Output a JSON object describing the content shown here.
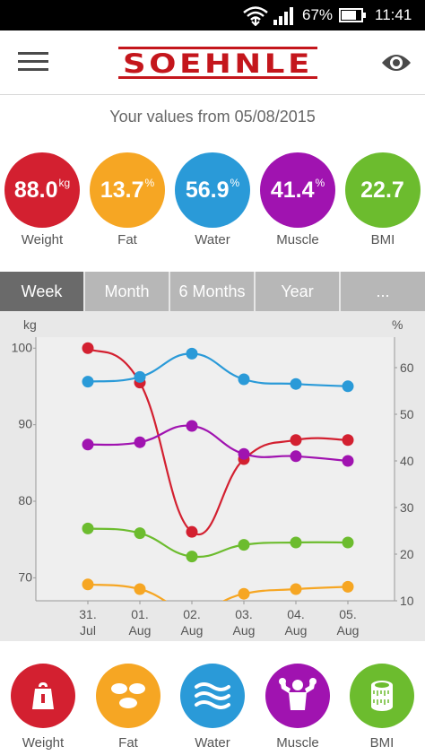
{
  "status": {
    "battery_pct": "67%",
    "time": "11:41"
  },
  "header": {
    "logo_text": "SOEHNLE"
  },
  "subtitle": "Your values from 05/08/2015",
  "metrics": [
    {
      "value": "88.0",
      "unit": "kg",
      "label": "Weight",
      "color": "#d32030"
    },
    {
      "value": "13.7",
      "unit": "%",
      "label": "Fat",
      "color": "#f6a623"
    },
    {
      "value": "56.9",
      "unit": "%",
      "label": "Water",
      "color": "#2a9ad8"
    },
    {
      "value": "41.4",
      "unit": "%",
      "label": "Muscle",
      "color": "#a013b0"
    },
    {
      "value": "22.7",
      "unit": "",
      "label": "BMI",
      "color": "#6cbc2e"
    }
  ],
  "tabs": [
    {
      "label": "Week",
      "active": true
    },
    {
      "label": "Month",
      "active": false
    },
    {
      "label": "6 Months",
      "active": false
    },
    {
      "label": "Year",
      "active": false
    },
    {
      "label": "...",
      "active": false
    }
  ],
  "chart_data": {
    "type": "line",
    "title": "",
    "ylabel_left": "kg",
    "ylabel_right": "%",
    "left_ticks": [
      "100",
      "90",
      "80",
      "70"
    ],
    "right_ticks": [
      "60",
      "50",
      "40",
      "30",
      "20",
      "10"
    ],
    "ylim_left": [
      67,
      100.5
    ],
    "ylim_right": [
      10,
      65
    ],
    "categories": [
      {
        "line1": "31.",
        "line2": "Jul"
      },
      {
        "line1": "01.",
        "line2": "Aug"
      },
      {
        "line1": "02.",
        "line2": "Aug"
      },
      {
        "line1": "03.",
        "line2": "Aug"
      },
      {
        "line1": "04.",
        "line2": "Aug"
      },
      {
        "line1": "05.",
        "line2": "Aug"
      }
    ],
    "series": [
      {
        "metric": "Weight",
        "axis": "left",
        "color": "#d32030",
        "values": [
          100,
          95.5,
          76,
          85.5,
          88,
          88
        ]
      },
      {
        "metric": "Water",
        "axis": "right",
        "color": "#2a9ad8",
        "values": [
          57,
          58,
          63,
          57.5,
          56.5,
          56
        ]
      },
      {
        "metric": "Muscle",
        "axis": "right",
        "color": "#a013b0",
        "values": [
          43.5,
          44,
          47.5,
          41.5,
          41,
          40
        ]
      },
      {
        "metric": "BMI",
        "axis": "right",
        "color": "#6cbc2e",
        "values": [
          25.5,
          24.5,
          19.5,
          22,
          22.5,
          22.5
        ]
      },
      {
        "metric": "Fat",
        "axis": "right",
        "color": "#f6a623",
        "values": [
          13.5,
          12.5,
          8,
          11.5,
          12.5,
          13
        ]
      }
    ],
    "grid": false,
    "legend": "none"
  },
  "categories_bar": [
    {
      "label": "Weight",
      "icon": "weight-icon",
      "color": "#d32030"
    },
    {
      "label": "Fat",
      "icon": "fat-icon",
      "color": "#f6a623"
    },
    {
      "label": "Water",
      "icon": "water-icon",
      "color": "#2a9ad8"
    },
    {
      "label": "Muscle",
      "icon": "muscle-icon",
      "color": "#a013b0"
    },
    {
      "label": "BMI",
      "icon": "bmi-icon",
      "color": "#6cbc2e"
    }
  ]
}
